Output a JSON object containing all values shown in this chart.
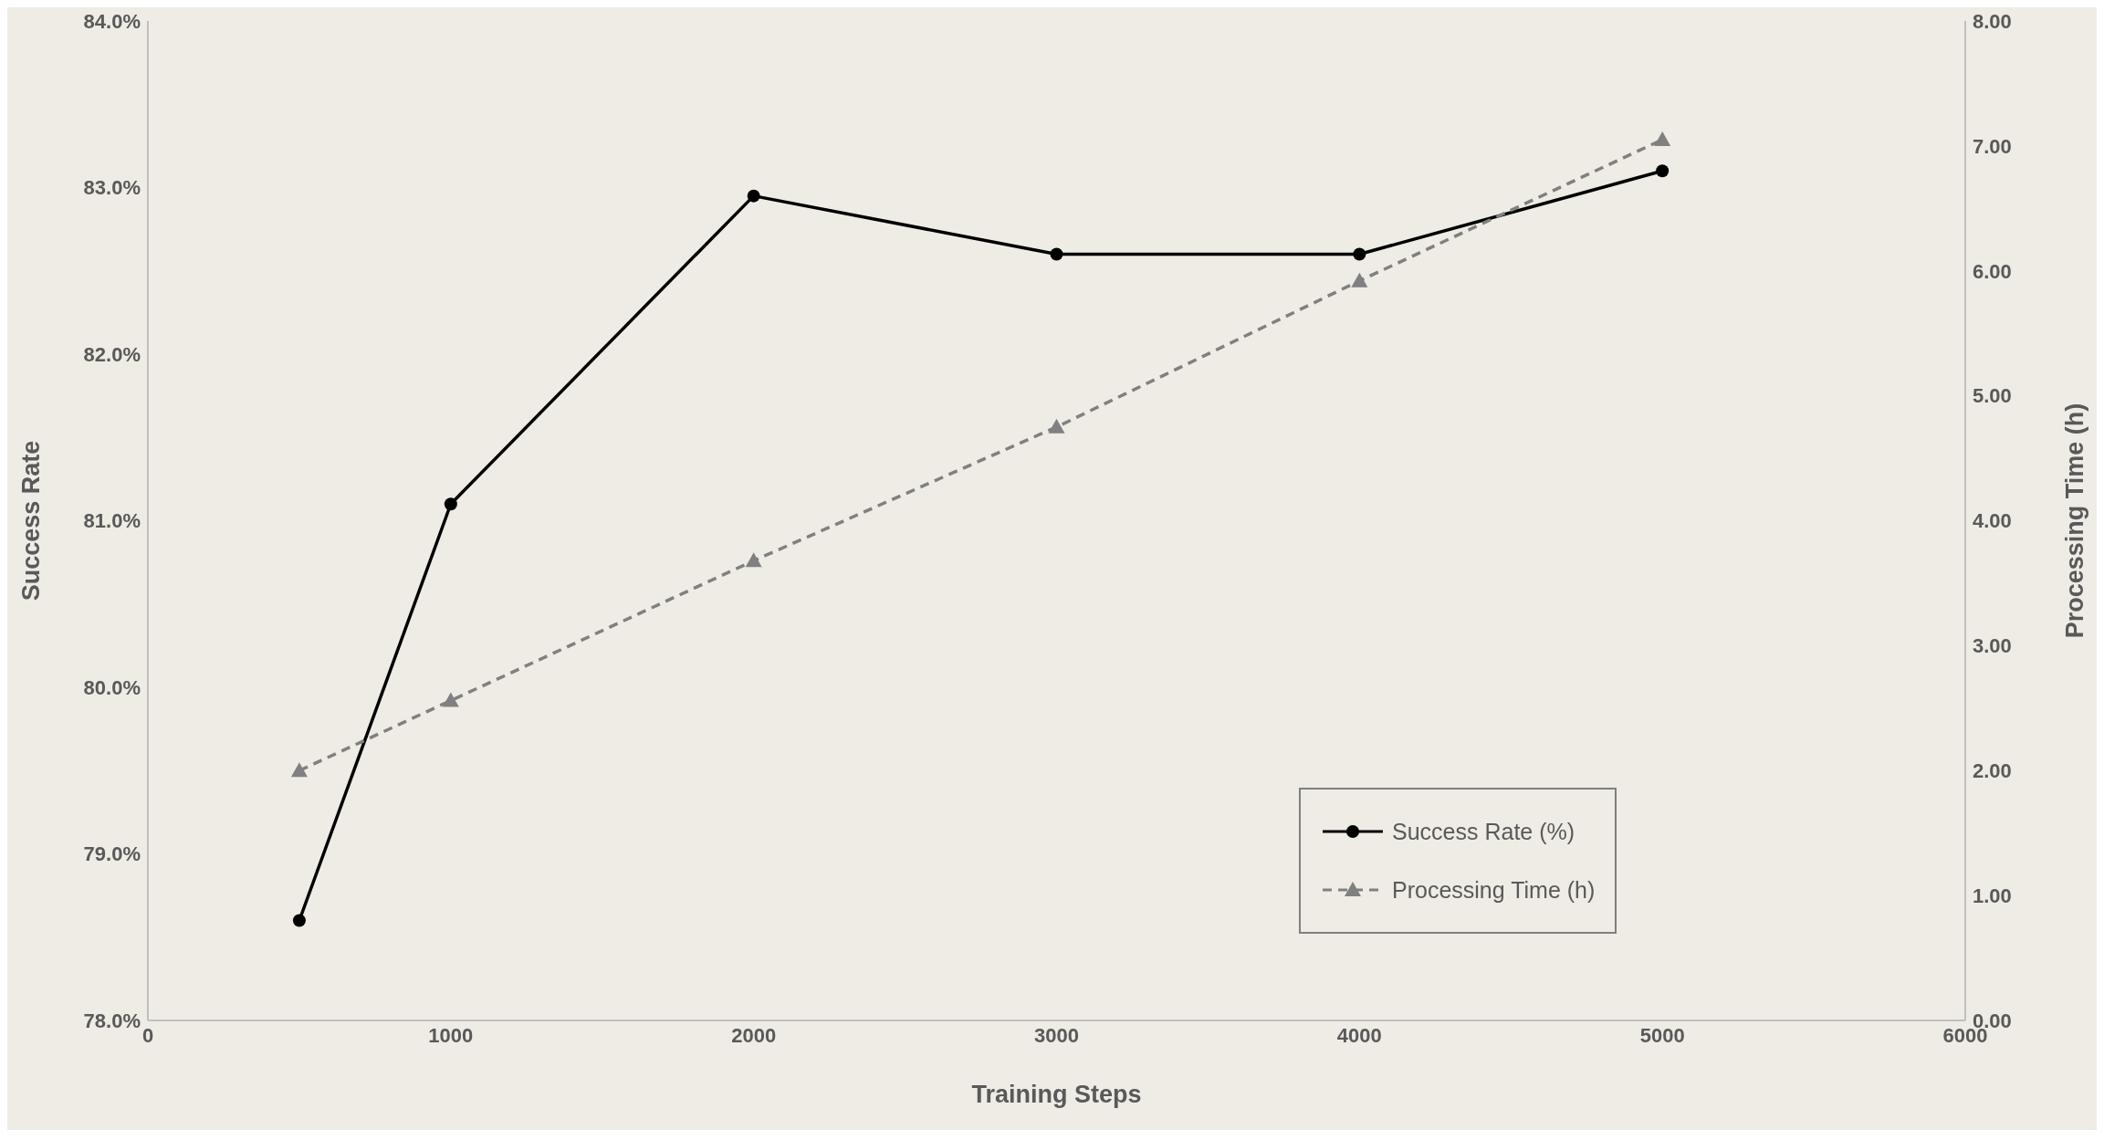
{
  "chart_data": {
    "type": "line",
    "xlabel": "Training Steps",
    "ylabel": "Success Rate",
    "y2label": "Processing Time (h)",
    "x": [
      500,
      1000,
      2000,
      3000,
      4000,
      5000
    ],
    "series": [
      {
        "name": "Success Rate (%)",
        "color": "#000000",
        "values": [
          78.6,
          81.1,
          82.95,
          82.6,
          82.6,
          83.1
        ],
        "marker": "circle",
        "line_style": "solid"
      },
      {
        "name": "Processing Time (h)",
        "color": "#808080",
        "values": [
          2.0,
          2.56,
          3.68,
          4.75,
          5.92,
          7.05
        ],
        "axis": "y2",
        "marker": "triangle",
        "line_style": "dashed"
      }
    ],
    "xlim": [
      0,
      6000
    ],
    "xticks": [
      0,
      1000,
      2000,
      3000,
      4000,
      5000,
      6000
    ],
    "ylim": [
      78,
      84
    ],
    "yticks": [
      {
        "value": 78,
        "label": "78.0%"
      },
      {
        "value": 79,
        "label": "79.0%"
      },
      {
        "value": 80,
        "label": "80.0%"
      },
      {
        "value": 81,
        "label": "81.0%"
      },
      {
        "value": 82,
        "label": "82.0%"
      },
      {
        "value": 83,
        "label": "83.0%"
      },
      {
        "value": 84,
        "label": "84.0%"
      }
    ],
    "y2lim": [
      0,
      8
    ],
    "y2ticks": [
      {
        "value": 0,
        "label": "0.00"
      },
      {
        "value": 1,
        "label": "1.00"
      },
      {
        "value": 2,
        "label": "2.00"
      },
      {
        "value": 3,
        "label": "3.00"
      },
      {
        "value": 4,
        "label": "4.00"
      },
      {
        "value": 5,
        "label": "5.00"
      },
      {
        "value": 6,
        "label": "6.00"
      },
      {
        "value": 7,
        "label": "7.00"
      },
      {
        "value": 8,
        "label": "8.00"
      }
    ],
    "grid": false,
    "legend": "bottom right"
  }
}
